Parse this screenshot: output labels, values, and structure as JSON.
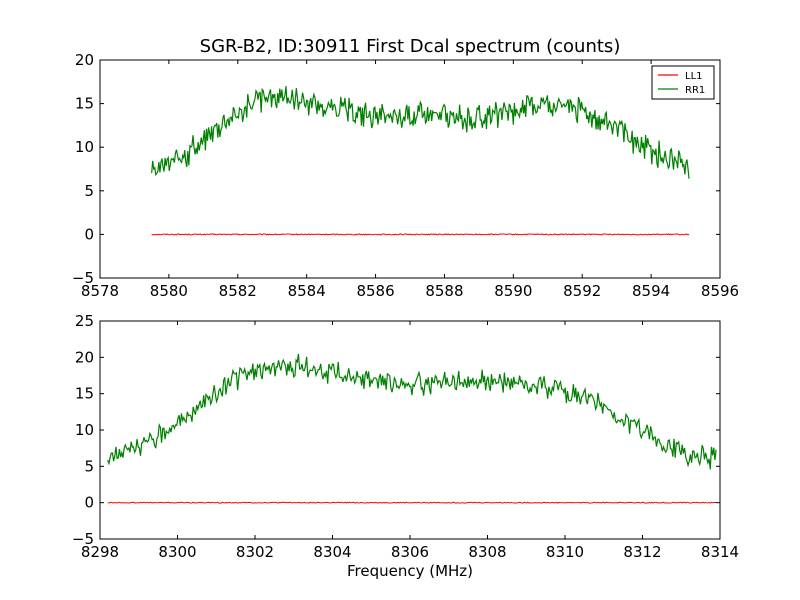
{
  "chart_data": [
    {
      "type": "line",
      "title": "SGR-B2, ID:30911 First Dcal spectrum (counts)",
      "xlabel": "",
      "ylabel": "",
      "xlim": [
        8578,
        8596
      ],
      "ylim": [
        -5,
        20
      ],
      "xticks": [
        "8578",
        "8580",
        "8582",
        "8584",
        "8586",
        "8588",
        "8590",
        "8592",
        "8594",
        "8596"
      ],
      "yticks": [
        "−5",
        "0",
        "5",
        "10",
        "15",
        "20"
      ],
      "legend": {
        "position": "top-right",
        "entries": [
          "LL1",
          "RR1"
        ]
      },
      "grid": false,
      "series": [
        {
          "name": "LL1",
          "color": "#ff0000",
          "x": [
            8579.5,
            8581,
            8583,
            8585,
            8587,
            8589,
            8591,
            8593,
            8595.1
          ],
          "y": [
            0,
            0,
            0,
            0,
            0,
            0,
            0,
            0,
            0
          ]
        },
        {
          "name": "RR1",
          "color": "#008000",
          "x": [
            8579.5,
            8580,
            8580.5,
            8581,
            8581.5,
            8582,
            8582.5,
            8583,
            8583.5,
            8584,
            8584.5,
            8585,
            8585.5,
            8586,
            8586.5,
            8587,
            8587.5,
            8588,
            8588.5,
            8589,
            8589.5,
            8590,
            8590.5,
            8591,
            8591.5,
            8592,
            8592.5,
            8593,
            8593.5,
            8594,
            8594.5,
            8595.1
          ],
          "y": [
            7.2,
            8.2,
            9.3,
            11.0,
            12.6,
            14.0,
            15.2,
            15.6,
            15.8,
            15.3,
            14.8,
            14.4,
            14.0,
            13.6,
            13.3,
            13.5,
            13.8,
            13.7,
            13.4,
            13.3,
            13.6,
            14.2,
            14.7,
            15.0,
            14.8,
            14.2,
            13.4,
            11.9,
            10.6,
            9.4,
            8.7,
            7.6
          ]
        }
      ]
    },
    {
      "type": "line",
      "title": "",
      "xlabel": "Frequency (MHz)",
      "ylabel": "",
      "xlim": [
        8298,
        8314
      ],
      "ylim": [
        -5,
        25
      ],
      "xticks": [
        "8298",
        "8300",
        "8302",
        "8304",
        "8306",
        "8308",
        "8310",
        "8312",
        "8314"
      ],
      "yticks": [
        "−5",
        "0",
        "5",
        "10",
        "15",
        "20",
        "25"
      ],
      "legend": null,
      "grid": false,
      "series": [
        {
          "name": "LL1",
          "color": "#ff0000",
          "x": [
            8298.2,
            8300,
            8302,
            8304,
            8306,
            8308,
            8310,
            8312,
            8313.9
          ],
          "y": [
            0,
            0,
            0,
            0,
            0,
            0,
            0,
            0,
            0
          ]
        },
        {
          "name": "RR1",
          "color": "#008000",
          "x": [
            8298.2,
            8298.7,
            8299.2,
            8299.7,
            8300.2,
            8300.7,
            8301.2,
            8301.7,
            8302.2,
            8302.7,
            8303.2,
            8303.7,
            8304.2,
            8304.7,
            8305.2,
            8305.7,
            8306.2,
            8306.7,
            8307.2,
            8307.7,
            8308.2,
            8308.7,
            8309.2,
            8309.7,
            8310.2,
            8310.7,
            8311.2,
            8311.7,
            8312.2,
            8312.7,
            8313.2,
            8313.9
          ],
          "y": [
            6.2,
            7.0,
            8.4,
            10.0,
            11.8,
            13.8,
            16.0,
            17.5,
            18.4,
            18.9,
            18.8,
            18.3,
            17.8,
            17.2,
            16.7,
            16.3,
            16.3,
            16.6,
            16.9,
            16.9,
            16.6,
            16.3,
            16.0,
            15.6,
            14.9,
            13.9,
            12.6,
            10.9,
            9.0,
            7.6,
            6.6,
            6.1
          ]
        }
      ]
    }
  ]
}
